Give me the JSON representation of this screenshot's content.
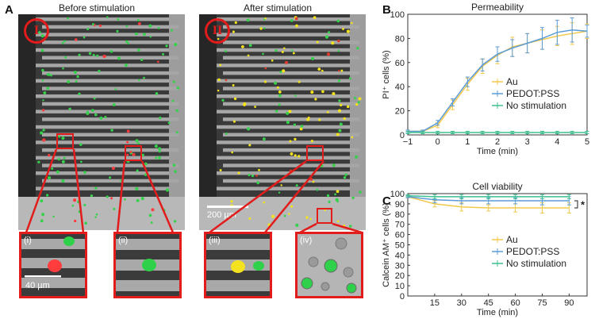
{
  "panel_a": {
    "label": "A",
    "title_before": "Before stimulation",
    "title_after": "After stimulation",
    "roman_before": "I",
    "roman_after": "II",
    "scale_main": "200 µm",
    "scale_zoom": "40 µm",
    "zoom_labels": [
      "(i)",
      "(ii)",
      "(iii)",
      "(iv)"
    ]
  },
  "chart_data": [
    {
      "panel_label": "B",
      "type": "line",
      "title": "Permeability",
      "xlabel": "Time (min)",
      "ylabel": "PI⁺ cells (%)",
      "xlim": [
        -1,
        5
      ],
      "ylim": [
        0,
        100
      ],
      "xticks": [
        "−1",
        "0",
        "1",
        "2",
        "3",
        "4",
        "5"
      ],
      "yticks": [
        "0",
        "20",
        "40",
        "60",
        "80",
        "100"
      ],
      "legend_position": "bottom-right",
      "series": [
        {
          "name": "Au",
          "color": "#f2c94c",
          "x": [
            -1,
            -0.5,
            0,
            0.5,
            1,
            1.5,
            2,
            2.5,
            3,
            3.5,
            4,
            4.5,
            5
          ],
          "y": [
            3,
            3,
            8,
            25,
            42,
            57,
            66,
            73,
            76,
            79,
            82,
            84,
            86
          ],
          "err": [
            1,
            1,
            2,
            4,
            5,
            6,
            7,
            8,
            8,
            8,
            8,
            9,
            6
          ]
        },
        {
          "name": "PEDOT:PSS",
          "color": "#5b9bd5",
          "x": [
            -1,
            -0.5,
            0,
            0.5,
            1,
            1.5,
            2,
            2.5,
            3,
            3.5,
            4,
            4.5,
            5
          ],
          "y": [
            3,
            3,
            10,
            27,
            44,
            58,
            67,
            72,
            76,
            80,
            85,
            87,
            86
          ],
          "err": [
            1,
            1,
            2,
            3,
            4,
            5,
            6,
            7,
            8,
            9,
            10,
            10,
            5
          ]
        },
        {
          "name": "No stimulation",
          "color": "#3fbf8f",
          "x": [
            -1,
            -0.5,
            0,
            0.5,
            1,
            1.5,
            2,
            2.5,
            3,
            3.5,
            4,
            4.5,
            5
          ],
          "y": [
            2,
            2,
            2,
            2,
            2,
            2,
            2,
            2,
            2,
            2,
            2,
            2,
            2
          ],
          "err": [
            1,
            1,
            1,
            1,
            1,
            1,
            1,
            1,
            1,
            1,
            1,
            1,
            1
          ]
        }
      ]
    },
    {
      "panel_label": "C",
      "type": "line",
      "title": "Cell viability",
      "xlabel": "Time (min)",
      "ylabel": "Calcein AM⁺ cells (%)",
      "xlim": [
        0,
        100
      ],
      "ylim": [
        0,
        100
      ],
      "xticks": [
        "15",
        "30",
        "45",
        "60",
        "75",
        "90"
      ],
      "yticks": [
        "0",
        "10",
        "20",
        "30",
        "40",
        "50",
        "60",
        "70",
        "80",
        "90",
        "100"
      ],
      "legend_position": "bottom-right",
      "significance": "*",
      "series": [
        {
          "name": "Au",
          "color": "#f2c94c",
          "x": [
            0,
            15,
            30,
            45,
            60,
            75,
            90
          ],
          "y": [
            97,
            90,
            87,
            86,
            86,
            86,
            86
          ],
          "err": [
            1,
            3,
            4,
            3,
            4,
            5,
            5
          ]
        },
        {
          "name": "PEDOT:PSS",
          "color": "#5b9bd5",
          "x": [
            0,
            15,
            30,
            45,
            60,
            75,
            90
          ],
          "y": [
            97,
            94,
            93,
            93,
            93,
            93,
            93
          ],
          "err": [
            1,
            3,
            3,
            3,
            3,
            4,
            4
          ]
        },
        {
          "name": "No stimulation",
          "color": "#3fbf8f",
          "x": [
            0,
            15,
            30,
            45,
            60,
            75,
            90
          ],
          "y": [
            98,
            97,
            97,
            97,
            97,
            97,
            97
          ],
          "err": [
            1,
            2,
            2,
            2,
            2,
            2,
            2
          ]
        }
      ]
    }
  ]
}
